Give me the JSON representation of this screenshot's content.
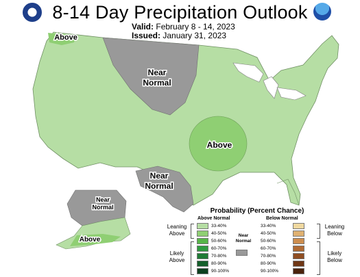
{
  "title": "8-14 Day Precipitation Outlook",
  "valid": {
    "label": "Valid:",
    "value": "February 8 - 14, 2023"
  },
  "issued": {
    "label": "Issued:",
    "value": "January 31, 2023"
  },
  "logos": {
    "left": "noaa-department-of-commerce-seal-icon",
    "right": "noaa-logo-icon"
  },
  "colors": {
    "background": "#ffffff",
    "lake": "#ffffff",
    "border": "#7f7f7f",
    "above_33_40": "#b6dea4",
    "above_40_50": "#8fcf73",
    "above_50_60": "#57b548",
    "above_60_70": "#2f9a3f",
    "above_70_80": "#1f7a35",
    "above_80_90": "#145f2a",
    "above_90_100": "#0c3f1e",
    "near_normal": "#999999",
    "below_33_40": "#f0d9a0",
    "below_40_50": "#dfb171",
    "below_50_60": "#cd8d4e",
    "below_60_70": "#b06a33",
    "below_70_80": "#8f4d21",
    "below_80_90": "#6f3615",
    "below_90_100": "#4a220c"
  },
  "map_labels": {
    "above_northwest": "Above",
    "near_normal_north": [
      "Near",
      "Normal"
    ],
    "above_central": "Above",
    "near_normal_south": [
      "Near",
      "Normal"
    ],
    "near_normal_alaska": [
      "Near",
      "Normal"
    ],
    "above_alaska": "Above"
  },
  "legend": {
    "title": "Probability (Percent Chance)",
    "above_header": "Above Normal",
    "below_header": "Below Normal",
    "near_normal_label": [
      "Near",
      "Normal"
    ],
    "leaning_above": [
      "Leaning",
      "Above"
    ],
    "likely_above": [
      "Likely",
      "Above"
    ],
    "leaning_below": [
      "Leaning",
      "Below"
    ],
    "likely_below": [
      "Likely",
      "Below"
    ],
    "above_rows": [
      {
        "range": "33-40%",
        "color": "#b6dea4"
      },
      {
        "range": "40-50%",
        "color": "#8fcf73"
      },
      {
        "range": "50-60%",
        "color": "#57b548"
      },
      {
        "range": "60-70%",
        "color": "#2f9a3f"
      },
      {
        "range": "70-80%",
        "color": "#1f7a35"
      },
      {
        "range": "80-90%",
        "color": "#145f2a"
      },
      {
        "range": "90-100%",
        "color": "#0c3f1e"
      }
    ],
    "below_rows": [
      {
        "range": "33-40%",
        "color": "#f0d9a0"
      },
      {
        "range": "40-50%",
        "color": "#dfb171"
      },
      {
        "range": "50-60%",
        "color": "#cd8d4e"
      },
      {
        "range": "60-70%",
        "color": "#b06a33"
      },
      {
        "range": "70-80%",
        "color": "#8f4d21"
      },
      {
        "range": "80-90%",
        "color": "#6f3615"
      },
      {
        "range": "90-100%",
        "color": "#4a220c"
      }
    ]
  }
}
